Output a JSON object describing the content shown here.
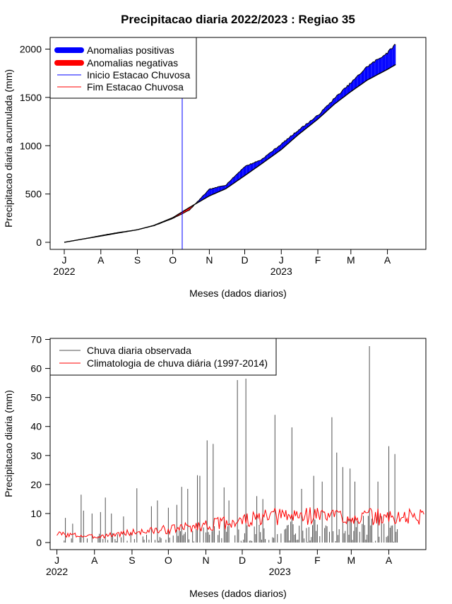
{
  "figure": {
    "title": "Precipitacao diaria 2022/2023 : Regiao 35"
  },
  "colors": {
    "positive": "#0000ff",
    "negative": "#ff0000",
    "rain_bars": "#505050",
    "climatology": "#ff0000",
    "season_start": "#0000ff",
    "season_end": "#ff0000"
  },
  "chart_data": [
    {
      "type": "area",
      "xlabel": "Meses (dados diarios)",
      "ylabel": "Precipitacao diaria acumulada (mm)",
      "ylim": [
        0,
        2000
      ],
      "yticks": [
        0,
        500,
        1000,
        1500,
        2000
      ],
      "xlim": [
        "2022-07-01",
        "2023-04-30"
      ],
      "month_ticks": [
        "J",
        "A",
        "S",
        "O",
        "N",
        "D",
        "J",
        "F",
        "M",
        "A"
      ],
      "year_labels": [
        "2022",
        "2023"
      ],
      "grid": false,
      "legend_position": "top-left",
      "legend": [
        {
          "label": "Anomalias positivas",
          "style": "thick-blue"
        },
        {
          "label": "Anomalias negativas",
          "style": "thick-red"
        },
        {
          "label": "Inicio Estacao Chuvosa",
          "style": "thin-blue"
        },
        {
          "label": "Fim Estacao Chuvosa",
          "style": "thin-red"
        }
      ],
      "season_start_date": "2022-10-09",
      "observed_cumulative": [
        {
          "x": "2022-07-01",
          "y": 0
        },
        {
          "x": "2022-07-15",
          "y": 30
        },
        {
          "x": "2022-08-01",
          "y": 70
        },
        {
          "x": "2022-08-15",
          "y": 100
        },
        {
          "x": "2022-09-01",
          "y": 130
        },
        {
          "x": "2022-09-15",
          "y": 170
        },
        {
          "x": "2022-10-01",
          "y": 245
        },
        {
          "x": "2022-10-15",
          "y": 330
        },
        {
          "x": "2022-11-01",
          "y": 545
        },
        {
          "x": "2022-11-15",
          "y": 590
        },
        {
          "x": "2022-12-01",
          "y": 780
        },
        {
          "x": "2022-12-15",
          "y": 850
        },
        {
          "x": "2023-01-01",
          "y": 1010
        },
        {
          "x": "2023-01-15",
          "y": 1150
        },
        {
          "x": "2023-02-01",
          "y": 1305
        },
        {
          "x": "2023-02-15",
          "y": 1480
        },
        {
          "x": "2023-03-01",
          "y": 1640
        },
        {
          "x": "2023-03-15",
          "y": 1810
        },
        {
          "x": "2023-04-01",
          "y": 1950
        },
        {
          "x": "2023-04-08",
          "y": 2040
        }
      ],
      "climatology_cumulative": [
        {
          "x": "2022-07-01",
          "y": 0
        },
        {
          "x": "2022-07-15",
          "y": 30
        },
        {
          "x": "2022-08-01",
          "y": 65
        },
        {
          "x": "2022-08-15",
          "y": 95
        },
        {
          "x": "2022-09-01",
          "y": 130
        },
        {
          "x": "2022-09-15",
          "y": 175
        },
        {
          "x": "2022-10-01",
          "y": 255
        },
        {
          "x": "2022-10-15",
          "y": 360
        },
        {
          "x": "2022-11-01",
          "y": 480
        },
        {
          "x": "2022-11-15",
          "y": 555
        },
        {
          "x": "2022-12-01",
          "y": 690
        },
        {
          "x": "2022-12-15",
          "y": 810
        },
        {
          "x": "2023-01-01",
          "y": 960
        },
        {
          "x": "2023-01-15",
          "y": 1110
        },
        {
          "x": "2023-02-01",
          "y": 1275
        },
        {
          "x": "2023-02-15",
          "y": 1430
        },
        {
          "x": "2023-03-01",
          "y": 1560
        },
        {
          "x": "2023-03-15",
          "y": 1680
        },
        {
          "x": "2023-04-01",
          "y": 1790
        },
        {
          "x": "2023-04-08",
          "y": 1840
        }
      ]
    },
    {
      "type": "bar",
      "xlabel": "Meses (dados diarios)",
      "ylabel": "Precipitacao diaria (mm)",
      "ylim": [
        0,
        70
      ],
      "yticks": [
        0,
        10,
        20,
        30,
        40,
        50,
        60,
        70
      ],
      "xlim": [
        "2022-06-26",
        "2023-05-01"
      ],
      "month_ticks": [
        "J",
        "A",
        "S",
        "O",
        "N",
        "D",
        "J",
        "F",
        "M",
        "A"
      ],
      "year_labels": [
        "2022",
        "2023"
      ],
      "grid": false,
      "legend_position": "top-left",
      "legend": [
        {
          "label": "Chuva diaria observada",
          "style": "thin-gray"
        },
        {
          "label": "Climatologia de chuva diária (1997-2014)",
          "style": "thin-red"
        }
      ],
      "daily_rain": [
        {
          "x": "2022-07-08",
          "y": 8.5
        },
        {
          "x": "2022-07-14",
          "y": 6.5
        },
        {
          "x": "2022-07-21",
          "y": 16.5
        },
        {
          "x": "2022-07-23",
          "y": 11
        },
        {
          "x": "2022-07-30",
          "y": 10
        },
        {
          "x": "2022-08-06",
          "y": 10.5
        },
        {
          "x": "2022-08-10",
          "y": 15.5
        },
        {
          "x": "2022-08-15",
          "y": 10
        },
        {
          "x": "2022-08-25",
          "y": 9
        },
        {
          "x": "2022-09-05",
          "y": 18.7
        },
        {
          "x": "2022-09-17",
          "y": 12.5
        },
        {
          "x": "2022-09-22",
          "y": 14.5
        },
        {
          "x": "2022-10-01",
          "y": 12
        },
        {
          "x": "2022-10-08",
          "y": 13
        },
        {
          "x": "2022-10-12",
          "y": 19.2
        },
        {
          "x": "2022-10-17",
          "y": 18.5
        },
        {
          "x": "2022-10-25",
          "y": 23.2
        },
        {
          "x": "2022-10-27",
          "y": 23
        },
        {
          "x": "2022-11-02",
          "y": 35.2
        },
        {
          "x": "2022-11-07",
          "y": 34
        },
        {
          "x": "2022-11-16",
          "y": 19
        },
        {
          "x": "2022-11-20",
          "y": 14.5
        },
        {
          "x": "2022-11-27",
          "y": 56
        },
        {
          "x": "2022-12-04",
          "y": 56.5
        },
        {
          "x": "2022-12-13",
          "y": 16
        },
        {
          "x": "2022-12-18",
          "y": 15
        },
        {
          "x": "2022-12-28",
          "y": 44
        },
        {
          "x": "2023-01-11",
          "y": 39.7
        },
        {
          "x": "2023-01-19",
          "y": 18.5
        },
        {
          "x": "2023-01-29",
          "y": 23
        },
        {
          "x": "2023-02-05",
          "y": 21
        },
        {
          "x": "2023-02-13",
          "y": 43.2
        },
        {
          "x": "2023-02-17",
          "y": 31
        },
        {
          "x": "2023-02-22",
          "y": 26
        },
        {
          "x": "2023-02-28",
          "y": 25.5
        },
        {
          "x": "2023-03-04",
          "y": 21
        },
        {
          "x": "2023-03-16",
          "y": 67.7
        },
        {
          "x": "2023-03-23",
          "y": 21
        },
        {
          "x": "2023-04-01",
          "y": 33.2
        },
        {
          "x": "2023-04-06",
          "y": 30.5
        }
      ],
      "climatology_daily": [
        {
          "x": "2022-07-01",
          "y": 3
        },
        {
          "x": "2022-08-01",
          "y": 2
        },
        {
          "x": "2022-09-01",
          "y": 3.5
        },
        {
          "x": "2022-10-01",
          "y": 4.5
        },
        {
          "x": "2022-11-01",
          "y": 6
        },
        {
          "x": "2022-12-01",
          "y": 7.5
        },
        {
          "x": "2023-01-01",
          "y": 9
        },
        {
          "x": "2023-02-01",
          "y": 9.5
        },
        {
          "x": "2023-03-01",
          "y": 9
        },
        {
          "x": "2023-04-01",
          "y": 8.5
        },
        {
          "x": "2023-04-30",
          "y": 9
        }
      ]
    }
  ]
}
